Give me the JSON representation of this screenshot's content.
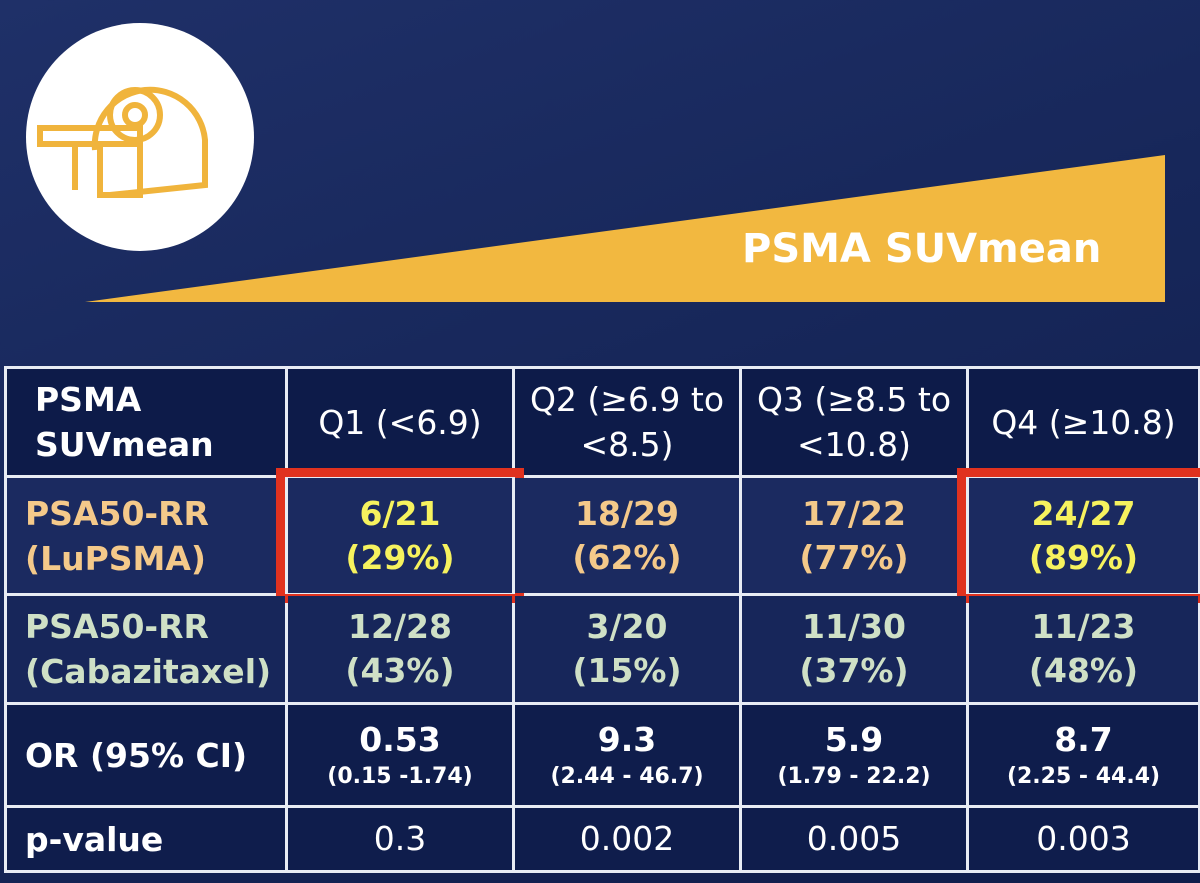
{
  "banner": {
    "label": "PSMA SUVmean"
  },
  "table": {
    "header": [
      "PSMA SUVmean",
      "Q1 (<6.9)",
      "Q2 (≥6.9 to <8.5)",
      "Q3 (≥8.5 to <10.8)",
      "Q4 (≥10.8)"
    ],
    "rows": [
      {
        "label": "PSA50-RR (LuPSMA)",
        "color": "#f4c98a",
        "highlight_color": "#f6f25e",
        "cells": [
          {
            "main": "6/21",
            "sub": "(29%)",
            "highlight": true
          },
          {
            "main": "18/29",
            "sub": "(62%)"
          },
          {
            "main": "17/22",
            "sub": "(77%)"
          },
          {
            "main": "24/27",
            "sub": "(89%)",
            "highlight": true
          }
        ]
      },
      {
        "label": "PSA50-RR (Cabazitaxel)",
        "color": "#cfe0c6",
        "cells": [
          {
            "main": "12/28",
            "sub": "(43%)"
          },
          {
            "main": "3/20",
            "sub": "(15%)"
          },
          {
            "main": "11/30",
            "sub": "(37%)"
          },
          {
            "main": "11/23",
            "sub": "(48%)"
          }
        ]
      },
      {
        "label": "OR (95% CI)",
        "color": "#ffffff",
        "cells": [
          {
            "main": "0.53",
            "sub": "(0.15 -1.74)"
          },
          {
            "main": "9.3",
            "sub": "(2.44 - 46.7)"
          },
          {
            "main": "5.9",
            "sub": "(1.79 - 22.2)"
          },
          {
            "main": "8.7",
            "sub": "(2.25 - 44.4)"
          }
        ]
      },
      {
        "label": "p-value",
        "color": "#ffffff",
        "cells": [
          {
            "main": "0.3"
          },
          {
            "main": "0.002"
          },
          {
            "main": "0.005"
          },
          {
            "main": "0.003"
          }
        ]
      }
    ]
  }
}
